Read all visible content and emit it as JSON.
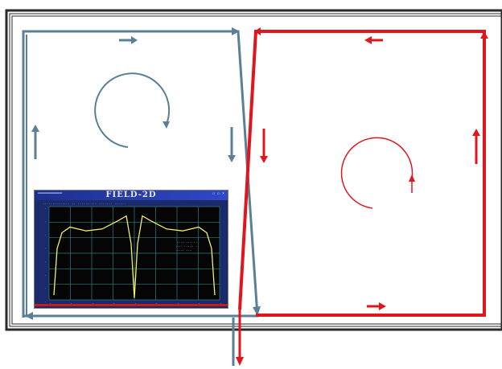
{
  "figure": {
    "colors": {
      "blue_loop": "#5b7f94",
      "red_loop": "#e0161e",
      "frame": "#2a2a2a",
      "plot_bg": "#050505",
      "plot_grid": "#2f7f7f",
      "plot_curve": "#f2ef6a"
    },
    "left_loop": {
      "circulation": "clockwise"
    },
    "right_loop": {
      "circulation": "counterclockwise"
    }
  },
  "plot_window": {
    "title": "FIELD-2D",
    "titlebar_left": "══════════",
    "titlebar_right": "▫ ▫ ×",
    "infobar": "·············· ·· ·········· ······· ······",
    "legend_lines": [
      "···· ··· ··",
      "··· ····· ·",
      "···· ···"
    ],
    "y_tick_labels": [
      "·",
      "·",
      "·",
      "·",
      "·",
      "·",
      "·",
      "·"
    ],
    "x_tick_labels": [
      "·",
      "·",
      "·",
      "·",
      "·",
      "·",
      "·",
      "·",
      "·"
    ]
  },
  "chart_data": {
    "type": "line",
    "title": "FIELD-2D",
    "xlabel": "",
    "ylabel": "",
    "grid": true,
    "series": [
      {
        "x": [
          0,
          0.02,
          0.05,
          0.1,
          0.2,
          0.3,
          0.4,
          0.45,
          0.48,
          0.5,
          0.52,
          0.55,
          0.6,
          0.7,
          0.8,
          0.9,
          0.95,
          0.98,
          1.0
        ],
        "y": [
          0.05,
          0.55,
          0.72,
          0.78,
          0.74,
          0.76,
          0.85,
          0.9,
          0.6,
          0.02,
          0.6,
          0.9,
          0.85,
          0.76,
          0.74,
          0.78,
          0.72,
          0.55,
          0.05
        ]
      }
    ]
  }
}
